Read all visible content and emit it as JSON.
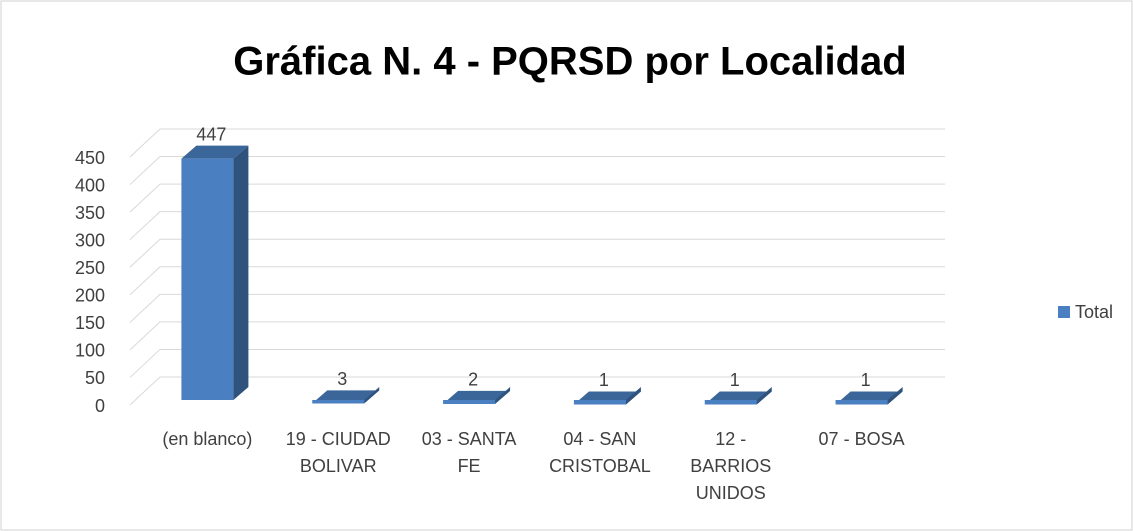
{
  "chart_data": {
    "type": "bar3d",
    "title": "Gráfica N. 4 - PQRSD por Localidad",
    "categories": [
      "(en blanco)",
      "19 - CIUDAD BOLIVAR",
      "03 - SANTA FE",
      "04 - SAN CRISTOBAL",
      "12 - BARRIOS UNIDOS",
      "07 - BOSA"
    ],
    "series": [
      {
        "name": "Total",
        "color": "#4a7fc1",
        "values": [
          447,
          3,
          2,
          1,
          1,
          1
        ]
      }
    ],
    "ylim": [
      0,
      450
    ],
    "yticks": [
      0,
      50,
      100,
      150,
      200,
      250,
      300,
      350,
      400,
      450
    ],
    "grid": true,
    "legend": "right"
  }
}
